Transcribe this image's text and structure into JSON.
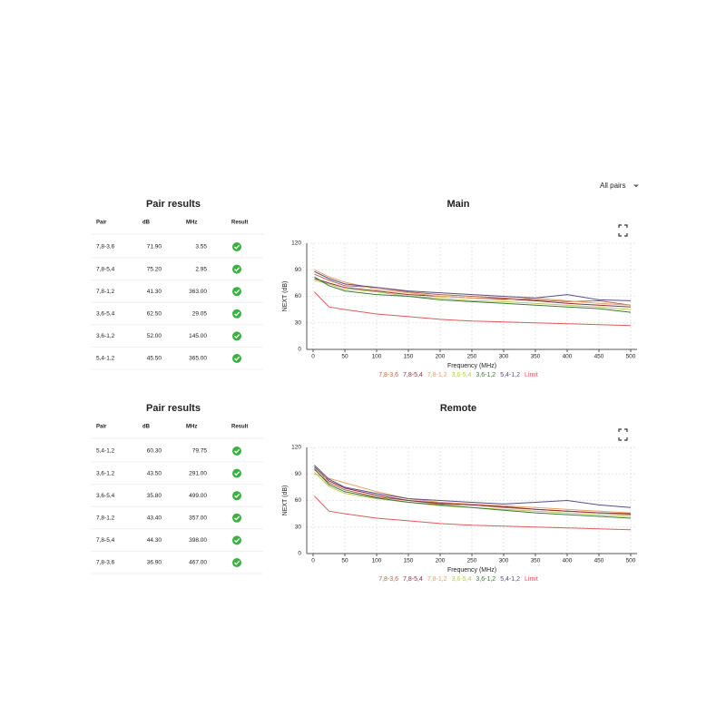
{
  "filter": "All pairs",
  "tables": [
    {
      "title": "Pair results",
      "columns": [
        "Pair",
        "dB",
        "MHz",
        "Result"
      ],
      "rows": [
        [
          "7,8-3,6",
          "71.90",
          "3.55"
        ],
        [
          "7,8-5,4",
          "75.20",
          "2.95"
        ],
        [
          "7,8-1,2",
          "41.30",
          "363.00"
        ],
        [
          "3,6-5,4",
          "62.50",
          "29.05"
        ],
        [
          "3,6-1,2",
          "52.00",
          "145.00"
        ],
        [
          "5,4-1,2",
          "45.50",
          "365.00"
        ]
      ]
    },
    {
      "title": "Pair results",
      "columns": [
        "Pair",
        "dB",
        "MHz",
        "Result"
      ],
      "rows": [
        [
          "5,4-1,2",
          "60.30",
          "79.75"
        ],
        [
          "3,6-1,2",
          "43.50",
          "291.00"
        ],
        [
          "3,6-5,4",
          "35.80",
          "499.00"
        ],
        [
          "7,8-1,2",
          "43.40",
          "357.00"
        ],
        [
          "7,8-5,4",
          "44.30",
          "398.00"
        ],
        [
          "7,8-3,6",
          "36.90",
          "467.00"
        ]
      ]
    }
  ],
  "chart_data": [
    {
      "type": "line",
      "title": "Main",
      "x_label": "Frequency (MHz)",
      "y_label": "NEXT (dB)",
      "x": [
        2,
        25,
        50,
        100,
        150,
        200,
        250,
        300,
        350,
        400,
        450,
        500
      ],
      "xlim": [
        -10,
        510
      ],
      "ylim": [
        0,
        120
      ],
      "xticks": [
        0,
        50,
        100,
        150,
        200,
        250,
        300,
        350,
        400,
        450,
        500
      ],
      "yticks": [
        0,
        30,
        60,
        90,
        120
      ],
      "grid": true,
      "series": [
        {
          "name": "7,8-3,6",
          "color": "#b5654a",
          "values": [
            85,
            78,
            72,
            70,
            65,
            62,
            60,
            58,
            56,
            54,
            55,
            50
          ]
        },
        {
          "name": "7,8-5,4",
          "color": "#8b2f3f",
          "values": [
            80,
            75,
            70,
            66,
            62,
            60,
            58,
            57,
            55,
            52,
            50,
            48
          ]
        },
        {
          "name": "7,8-1,2",
          "color": "#e8a060",
          "values": [
            90,
            82,
            76,
            68,
            64,
            60,
            58,
            56,
            58,
            55,
            52,
            50
          ]
        },
        {
          "name": "3,6-5,4",
          "color": "#b8c85a",
          "values": [
            78,
            74,
            68,
            65,
            60,
            58,
            55,
            54,
            52,
            50,
            48,
            45
          ]
        },
        {
          "name": "3,6-1,2",
          "color": "#3a7a3a",
          "values": [
            82,
            72,
            66,
            62,
            60,
            56,
            54,
            52,
            50,
            48,
            46,
            42
          ]
        },
        {
          "name": "5,4-1,2",
          "color": "#5a4e8a",
          "values": [
            88,
            80,
            74,
            70,
            66,
            64,
            62,
            60,
            58,
            62,
            56,
            55
          ]
        },
        {
          "name": "Limit",
          "color": "#e05a5a",
          "values": [
            65,
            48,
            45,
            40,
            37,
            34,
            32,
            31,
            30,
            29,
            28,
            27
          ]
        }
      ]
    },
    {
      "type": "line",
      "title": "Remote",
      "x_label": "Frequency (MHz)",
      "y_label": "NEXT (dB)",
      "x": [
        2,
        25,
        50,
        100,
        150,
        200,
        250,
        300,
        350,
        400,
        450,
        500
      ],
      "xlim": [
        -10,
        510
      ],
      "ylim": [
        0,
        120
      ],
      "xticks": [
        0,
        50,
        100,
        150,
        200,
        250,
        300,
        350,
        400,
        450,
        500
      ],
      "yticks": [
        0,
        30,
        60,
        90,
        120
      ],
      "grid": true,
      "series": [
        {
          "name": "7,8-3,6",
          "color": "#b5654a",
          "values": [
            95,
            80,
            72,
            64,
            60,
            56,
            55,
            52,
            50,
            48,
            46,
            44
          ]
        },
        {
          "name": "7,8-5,4",
          "color": "#8b2f3f",
          "values": [
            98,
            82,
            74,
            66,
            60,
            57,
            55,
            53,
            50,
            48,
            46,
            45
          ]
        },
        {
          "name": "7,8-1,2",
          "color": "#e8a060",
          "values": [
            90,
            85,
            80,
            70,
            62,
            58,
            56,
            54,
            52,
            50,
            48,
            46
          ]
        },
        {
          "name": "3,6-5,4",
          "color": "#b8c85a",
          "values": [
            92,
            76,
            68,
            62,
            58,
            54,
            52,
            50,
            48,
            46,
            44,
            42
          ]
        },
        {
          "name": "3,6-1,2",
          "color": "#3a7a3a",
          "values": [
            96,
            78,
            70,
            63,
            58,
            55,
            52,
            49,
            46,
            44,
            42,
            40
          ]
        },
        {
          "name": "5,4-1,2",
          "color": "#5a4e8a",
          "values": [
            100,
            84,
            75,
            68,
            62,
            60,
            58,
            56,
            58,
            60,
            55,
            52
          ]
        },
        {
          "name": "Limit",
          "color": "#e05a5a",
          "values": [
            65,
            48,
            45,
            40,
            37,
            34,
            32,
            31,
            30,
            29,
            28,
            27
          ]
        }
      ]
    }
  ]
}
